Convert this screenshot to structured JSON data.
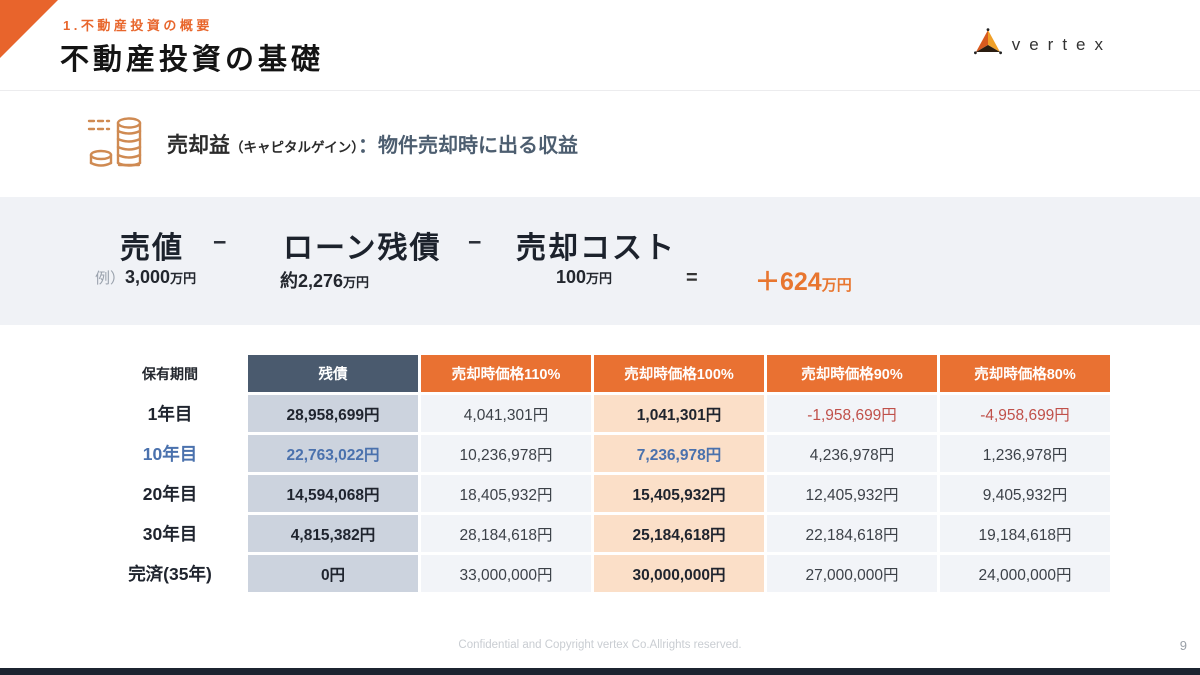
{
  "header": {
    "eyebrow": "1.不動産投資の概要",
    "title": "不動産投資の基礎",
    "logo_text": "vertex"
  },
  "capital_gain": {
    "term": "売却益",
    "term_note": "（キャピタルゲイン）",
    "definition": "：物件売却時に出る収益"
  },
  "formula": {
    "term1": "売値",
    "minus": "−",
    "term2": "ローン残債",
    "term3": "売却コスト",
    "example_label": "例）",
    "example1_num": "3,000",
    "example1_unit": "万円",
    "example2_num": "約2,276",
    "example2_unit": "万円",
    "example3_num": "100",
    "example3_unit": "万円",
    "equals": "=",
    "result_num": "＋624",
    "result_unit": "万円"
  },
  "table": {
    "headers": [
      "保有期間",
      "残債",
      "売却時価格110%",
      "売却時価格100%",
      "売却時価格90%",
      "売却時価格80%"
    ],
    "rows": [
      {
        "label": "1年目",
        "accent": false,
        "cells": [
          "28,958,699円",
          "4,041,301円",
          "1,041,301円",
          "-1,958,699円",
          "-4,958,699円"
        ]
      },
      {
        "label": "10年目",
        "accent": true,
        "cells": [
          "22,763,022円",
          "10,236,978円",
          "7,236,978円",
          "4,236,978円",
          "1,236,978円"
        ]
      },
      {
        "label": "20年目",
        "accent": false,
        "cells": [
          "14,594,068円",
          "18,405,932円",
          "15,405,932円",
          "12,405,932円",
          "9,405,932円"
        ]
      },
      {
        "label": "30年目",
        "accent": false,
        "cells": [
          "4,815,382円",
          "28,184,618円",
          "25,184,618円",
          "22,184,618円",
          "19,184,618円"
        ]
      },
      {
        "label": "完済(35年)",
        "accent": false,
        "cells": [
          "0円",
          "33,000,000円",
          "30,000,000円",
          "27,000,000円",
          "24,000,000円"
        ]
      }
    ]
  },
  "footer": {
    "copyright": "Confidential and Copyright vertex Co.Allrights reserved.",
    "page_number": "9"
  },
  "colors": {
    "accent_orange": "#e97132",
    "navy_header": "#4a5a6e",
    "accent_blue": "#4a71ad",
    "negative_red": "#c0504a",
    "band_gray": "#f0f2f6"
  }
}
